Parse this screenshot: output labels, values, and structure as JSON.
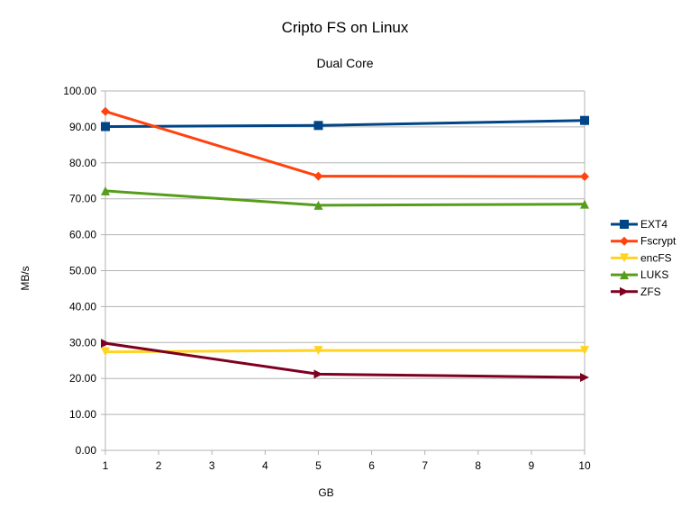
{
  "chart_data": {
    "type": "line",
    "title": "Cripto FS on Linux",
    "subtitle": "Dual Core",
    "xlabel": "GB",
    "ylabel": "MB/s",
    "x_ticks": [
      "1",
      "2",
      "3",
      "4",
      "5",
      "6",
      "7",
      "8",
      "9",
      "10"
    ],
    "ylim": [
      0,
      100
    ],
    "y_ticks": [
      "0.00",
      "10.00",
      "20.00",
      "30.00",
      "40.00",
      "50.00",
      "60.00",
      "70.00",
      "80.00",
      "90.00",
      "100.00"
    ],
    "grid": true,
    "legend_position": "right",
    "x": [
      1,
      5,
      10
    ],
    "series": [
      {
        "name": "EXT4",
        "values": [
          90.1,
          90.4,
          91.8
        ],
        "color": "#004586",
        "marker": "square"
      },
      {
        "name": "Fscrypt",
        "values": [
          94.3,
          76.3,
          76.2
        ],
        "color": "#ff420e",
        "marker": "diamond"
      },
      {
        "name": "encFS",
        "values": [
          27.4,
          27.8,
          27.8
        ],
        "color": "#ffd320",
        "marker": "triangle-down"
      },
      {
        "name": "LUKS",
        "values": [
          72.2,
          68.2,
          68.5
        ],
        "color": "#579d1c",
        "marker": "triangle-up"
      },
      {
        "name": "ZFS",
        "values": [
          29.8,
          21.2,
          20.3
        ],
        "color": "#7e0021",
        "marker": "triangle-right"
      }
    ]
  }
}
